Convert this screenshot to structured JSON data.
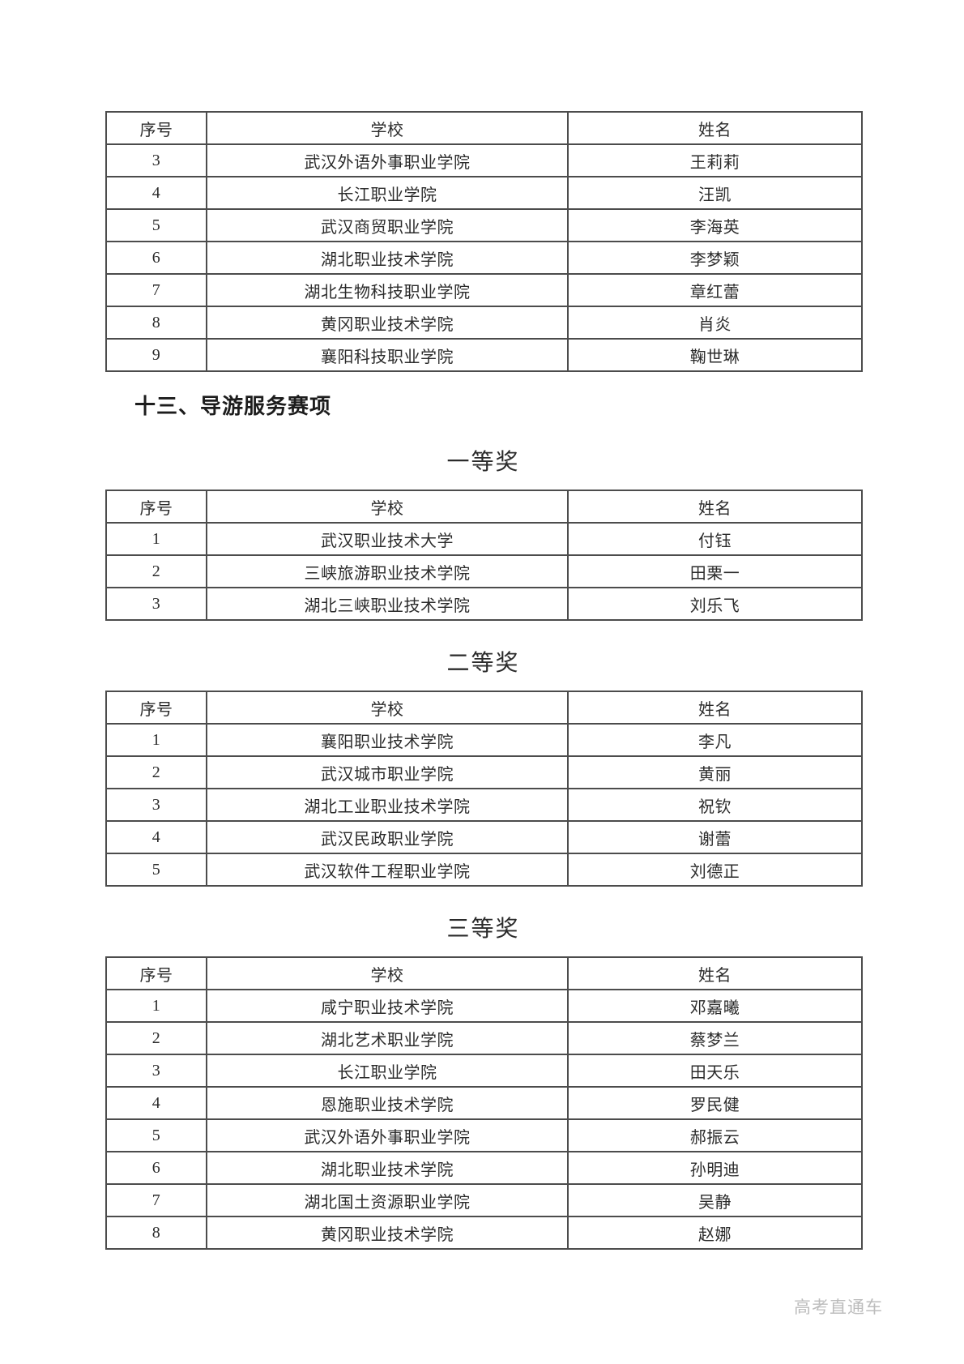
{
  "section": {
    "heading": "十三、导游服务赛项"
  },
  "watermark": "高考直通车",
  "columns": [
    "序号",
    "学校",
    "姓名"
  ],
  "tables": [
    {
      "award": "",
      "rows": [
        [
          "3",
          "武汉外语外事职业学院",
          "王莉莉"
        ],
        [
          "4",
          "长江职业学院",
          "汪凯"
        ],
        [
          "5",
          "武汉商贸职业学院",
          "李海英"
        ],
        [
          "6",
          "湖北职业技术学院",
          "李梦颖"
        ],
        [
          "7",
          "湖北生物科技职业学院",
          "章红蕾"
        ],
        [
          "8",
          "黄冈职业技术学院",
          "肖炎"
        ],
        [
          "9",
          "襄阳科技职业学院",
          "鞠世琳"
        ]
      ]
    },
    {
      "award": "一等奖",
      "rows": [
        [
          "1",
          "武汉职业技术大学",
          "付钰"
        ],
        [
          "2",
          "三峡旅游职业技术学院",
          "田栗一"
        ],
        [
          "3",
          "湖北三峡职业技术学院",
          "刘乐飞"
        ]
      ]
    },
    {
      "award": "二等奖",
      "rows": [
        [
          "1",
          "襄阳职业技术学院",
          "李凡"
        ],
        [
          "2",
          "武汉城市职业学院",
          "黄丽"
        ],
        [
          "3",
          "湖北工业职业技术学院",
          "祝钦"
        ],
        [
          "4",
          "武汉民政职业学院",
          "谢蕾"
        ],
        [
          "5",
          "武汉软件工程职业学院",
          "刘德正"
        ]
      ]
    },
    {
      "award": "三等奖",
      "rows": [
        [
          "1",
          "咸宁职业技术学院",
          "邓嘉曦"
        ],
        [
          "2",
          "湖北艺术职业学院",
          "蔡梦兰"
        ],
        [
          "3",
          "长江职业学院",
          "田天乐"
        ],
        [
          "4",
          "恩施职业技术学院",
          "罗民健"
        ],
        [
          "5",
          "武汉外语外事职业学院",
          "郝振云"
        ],
        [
          "6",
          "湖北职业技术学院",
          "孙明迪"
        ],
        [
          "7",
          "湖北国土资源职业学院",
          "吴静"
        ],
        [
          "8",
          "黄冈职业技术学院",
          "赵娜"
        ]
      ]
    }
  ]
}
